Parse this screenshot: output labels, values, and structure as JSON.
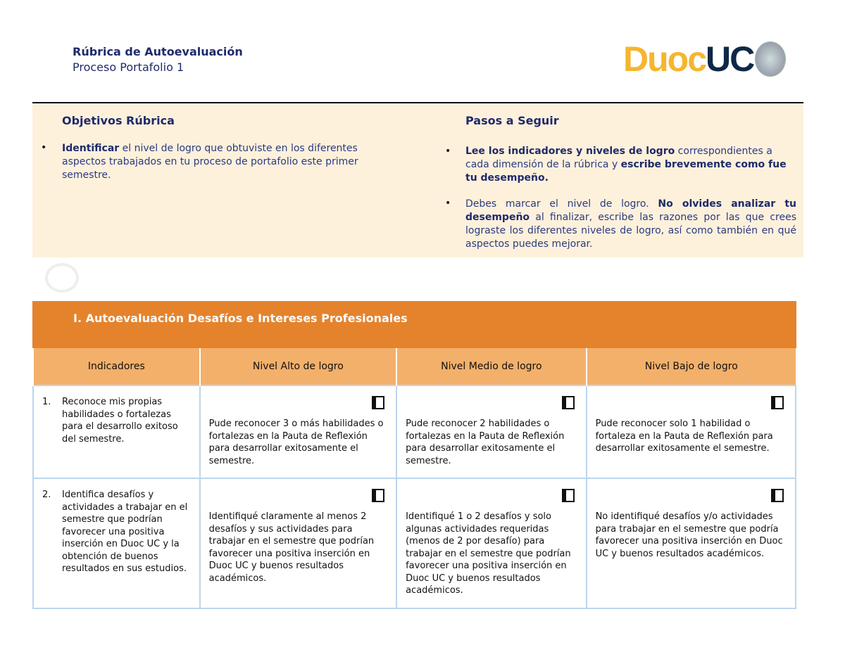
{
  "header": {
    "title": "Rúbrica de Autoevaluación",
    "subtitle": "Proceso Portafolio 1",
    "logo_text": [
      "Duoc",
      "UC"
    ]
  },
  "objetivos": {
    "title": "Objetivos Rúbrica",
    "items": [
      {
        "bold": "Identificar",
        "text": " el nivel de logro que obtuviste en los diferentes aspectos trabajados en tu proceso de portafolio este primer semestre."
      }
    ]
  },
  "pasos": {
    "title": "Pasos a Seguir",
    "item1": {
      "b1": "Lee los indicadores y niveles de logro",
      "t1": " correspondientes a cada dimensión de la rúbrica y ",
      "b2": "escribe brevemente como fue tu desempeño."
    },
    "item2": {
      "t1": "Debes marcar el nivel de logro. ",
      "b1": "No olvides analizar tu desempeño",
      "t2": " al finalizar, escribe las razones por las que crees lograste los diferentes niveles de logro, así como también en qué aspectos puedes mejorar."
    }
  },
  "section": {
    "title": "I. Autoevaluación Desafíos e Intereses Profesionales"
  },
  "table": {
    "headers": [
      "Indicadores",
      "Nivel Alto de logro",
      "Nivel Medio de logro",
      "Nivel Bajo de logro"
    ],
    "rows": [
      {
        "num": "1.",
        "indicator": "Reconoce mis propias habilidades o fortalezas para el desarrollo exitoso del semestre.",
        "alto": "Pude reconocer 3 o más habilidades o fortalezas en la Pauta de Reflexión para desarrollar exitosamente el semestre.",
        "medio": "Pude reconocer 2 habilidades o fortalezas en la Pauta de Reflexión para desarrollar exitosamente el semestre.",
        "bajo": "Pude reconocer solo 1 habilidad o fortaleza en la Pauta de Reflexión para desarrollar exitosamente el semestre."
      },
      {
        "num": "2.",
        "indicator": "Identifica desafíos y actividades a trabajar en el semestre que podrían favorecer una positiva inserción en Duoc UC y la obtención de buenos resultados en sus estudios.",
        "alto": "Identifiqué claramente al menos 2 desafíos y sus actividades para trabajar en el semestre que podrían favorecer una positiva inserción en Duoc UC y buenos resultados académicos.",
        "medio": "Identifiqué 1 o 2 desafíos y solo algunas actividades requeridas (menos de 2 por desafío) para trabajar en el semestre que podrían favorecer una positiva inserción en Duoc UC y buenos resultados académicos.",
        "bajo": "No identifiqué desafíos y/o actividades para trabajar en el semestre que podría favorecer una positiva inserción en Duoc UC y buenos resultados académicos."
      }
    ]
  },
  "colors": {
    "navy": "#1f2a6b",
    "orange": "#e5832d",
    "light_orange": "#f3b06a",
    "beige": "#fdf1dc",
    "border": "#bcd6ee"
  }
}
